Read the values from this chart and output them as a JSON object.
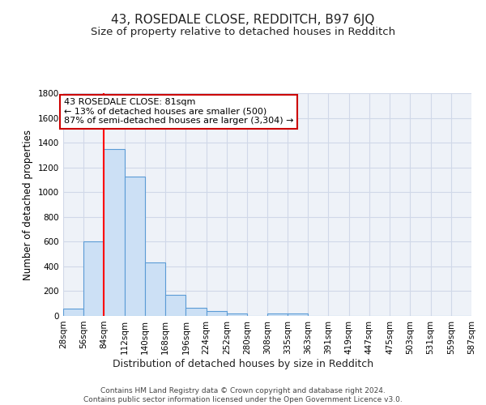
{
  "title": "43, ROSEDALE CLOSE, REDDITCH, B97 6JQ",
  "subtitle": "Size of property relative to detached houses in Redditch",
  "xlabel": "Distribution of detached houses by size in Redditch",
  "ylabel": "Number of detached properties",
  "bar_heights": [
    60,
    600,
    1350,
    1125,
    430,
    170,
    65,
    40,
    20,
    0,
    20,
    20,
    0,
    0,
    0,
    0,
    0,
    0,
    0,
    0
  ],
  "bin_edges": [
    28,
    56,
    84,
    112,
    140,
    168,
    196,
    224,
    252,
    280,
    308,
    335,
    363,
    391,
    419,
    447,
    475,
    503,
    531,
    559,
    587
  ],
  "xtick_labels": [
    "28sqm",
    "56sqm",
    "84sqm",
    "112sqm",
    "140sqm",
    "168sqm",
    "196sqm",
    "224sqm",
    "252sqm",
    "280sqm",
    "308sqm",
    "335sqm",
    "363sqm",
    "391sqm",
    "419sqm",
    "447sqm",
    "475sqm",
    "503sqm",
    "531sqm",
    "559sqm",
    "587sqm"
  ],
  "ylim": [
    0,
    1800
  ],
  "yticks": [
    0,
    200,
    400,
    600,
    800,
    1000,
    1200,
    1400,
    1600,
    1800
  ],
  "bar_color": "#cce0f5",
  "bar_edge_color": "#5b9bd5",
  "grid_color": "#d0d8e8",
  "bg_color": "#eef2f8",
  "red_line_x": 84,
  "annotation_text": "43 ROSEDALE CLOSE: 81sqm\n← 13% of detached houses are smaller (500)\n87% of semi-detached houses are larger (3,304) →",
  "annotation_box_color": "#ffffff",
  "annotation_border_color": "#cc0000",
  "footer_text": "Contains HM Land Registry data © Crown copyright and database right 2024.\nContains public sector information licensed under the Open Government Licence v3.0.",
  "title_fontsize": 11,
  "subtitle_fontsize": 9.5,
  "xlabel_fontsize": 9,
  "ylabel_fontsize": 8.5,
  "tick_fontsize": 7.5,
  "annotation_fontsize": 8,
  "footer_fontsize": 6.5
}
